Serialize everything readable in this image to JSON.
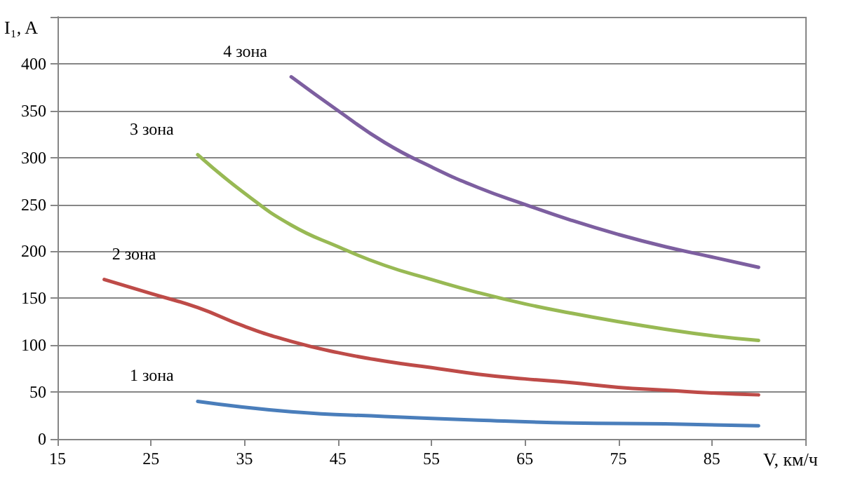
{
  "chart_data": {
    "type": "line",
    "xlabel": "V, км/ч",
    "ylabel": "I₁, A",
    "xlim": [
      15,
      95
    ],
    "xticks": [
      15,
      25,
      35,
      45,
      55,
      65,
      75,
      85,
      {
        "value": 95,
        "label": null
      }
    ],
    "ylim": [
      0,
      450
    ],
    "yticks": [
      0,
      50,
      100,
      150,
      200,
      250,
      300,
      350,
      400,
      {
        "value": 450,
        "label": null
      }
    ],
    "grid": "y",
    "legend": false,
    "marker": "none",
    "line_style": "solid",
    "series": [
      {
        "name": "1 зона",
        "color": "#4a7ebb",
        "x": [
          30,
          40,
          50,
          60,
          70,
          80,
          90
        ],
        "values": [
          40,
          29,
          24,
          20,
          17,
          16,
          14
        ]
      },
      {
        "name": "2 зона",
        "color": "#be4b48",
        "x": [
          20,
          25,
          30,
          35,
          40,
          45,
          50,
          55,
          60,
          65,
          70,
          75,
          80,
          85,
          90
        ],
        "values": [
          170,
          155,
          140,
          120,
          104,
          92,
          83,
          76,
          69,
          64,
          60,
          55,
          52,
          49,
          47
        ]
      },
      {
        "name": "3 зона",
        "color": "#98b954",
        "x": [
          30,
          35,
          40,
          45,
          50,
          55,
          60,
          65,
          70,
          75,
          80,
          85,
          90
        ],
        "values": [
          303,
          262,
          228,
          205,
          185,
          170,
          156,
          144,
          134,
          125,
          117,
          110,
          105
        ]
      },
      {
        "name": "4 зона",
        "color": "#7d5fa0",
        "x": [
          40,
          45,
          50,
          55,
          60,
          65,
          70,
          75,
          80,
          85,
          90
        ],
        "values": [
          386,
          350,
          316,
          290,
          268,
          250,
          233,
          218,
          205,
          194,
          183
        ]
      }
    ]
  }
}
